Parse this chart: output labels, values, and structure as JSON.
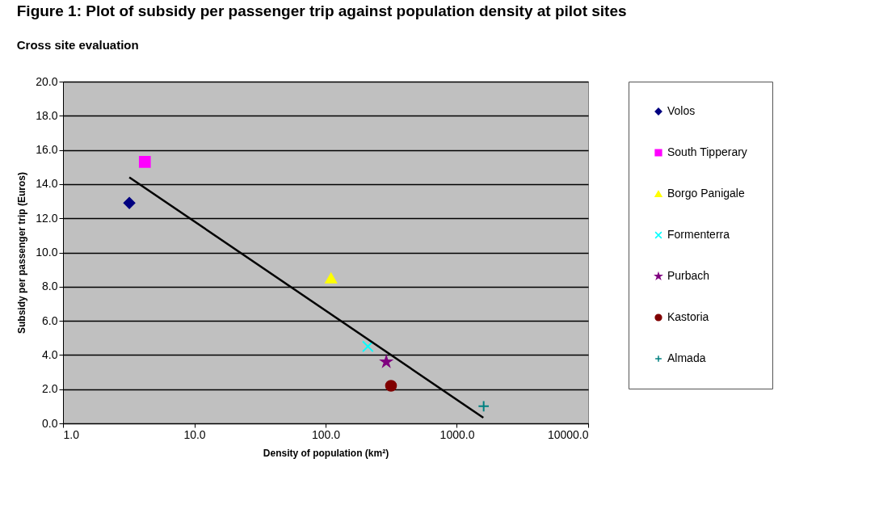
{
  "chart_data": {
    "type": "scatter",
    "title": "Figure 1: Plot of subsidy per passenger trip against population density at pilot sites",
    "subtitle": "Cross site evaluation",
    "xlabel": "Density of population (km²)",
    "ylabel": "Subsidy per passenger trip (Euros)",
    "log": "x",
    "xlim": [
      1,
      10000
    ],
    "xticks": [
      {
        "value": 1,
        "label": "1.0"
      },
      {
        "value": 10,
        "label": "10.0"
      },
      {
        "value": 100,
        "label": "100.0"
      },
      {
        "value": 1000,
        "label": "1000.0"
      },
      {
        "value": 10000,
        "label": "10000.0"
      }
    ],
    "ylim": [
      0,
      20
    ],
    "yticks": [
      {
        "value": 0,
        "label": "0.0"
      },
      {
        "value": 2,
        "label": "2.0"
      },
      {
        "value": 4,
        "label": "4.0"
      },
      {
        "value": 6,
        "label": "6.0"
      },
      {
        "value": 8,
        "label": "8.0"
      },
      {
        "value": 10,
        "label": "10.0"
      },
      {
        "value": 12,
        "label": "12.0"
      },
      {
        "value": 14,
        "label": "14.0"
      },
      {
        "value": 16,
        "label": "16.0"
      },
      {
        "value": 18,
        "label": "18.0"
      },
      {
        "value": 20,
        "label": "20.0"
      }
    ],
    "grid": "y",
    "legend": "right",
    "series": [
      {
        "name": "Volos",
        "color": "#000080",
        "marker": "diamond",
        "x": [
          3.2
        ],
        "values": [
          12.9
        ]
      },
      {
        "name": "South Tipperary",
        "color": "#ff00ff",
        "marker": "square",
        "x": [
          4.2
        ],
        "values": [
          15.3
        ]
      },
      {
        "name": "Borgo Panigale",
        "color": "#ffff00",
        "marker": "triangle",
        "x": [
          110
        ],
        "values": [
          8.5
        ]
      },
      {
        "name": "Formenterra",
        "color": "#00ffff",
        "marker": "x",
        "x": [
          210
        ],
        "values": [
          4.5
        ]
      },
      {
        "name": "Purbach",
        "color": "#800080",
        "marker": "star",
        "x": [
          290
        ],
        "values": [
          3.6
        ]
      },
      {
        "name": "Kastoria",
        "color": "#800000",
        "marker": "circle",
        "x": [
          315
        ],
        "values": [
          2.2
        ]
      },
      {
        "name": "Almada",
        "color": "#008080",
        "marker": "cross",
        "x": [
          1600
        ],
        "values": [
          1.0
        ]
      },
      {
        "type": "line",
        "color": "#000000",
        "marker": "none",
        "line_style": "solid",
        "x": [
          3.2,
          1590
        ],
        "values": [
          14.4,
          0.33
        ]
      }
    ]
  }
}
